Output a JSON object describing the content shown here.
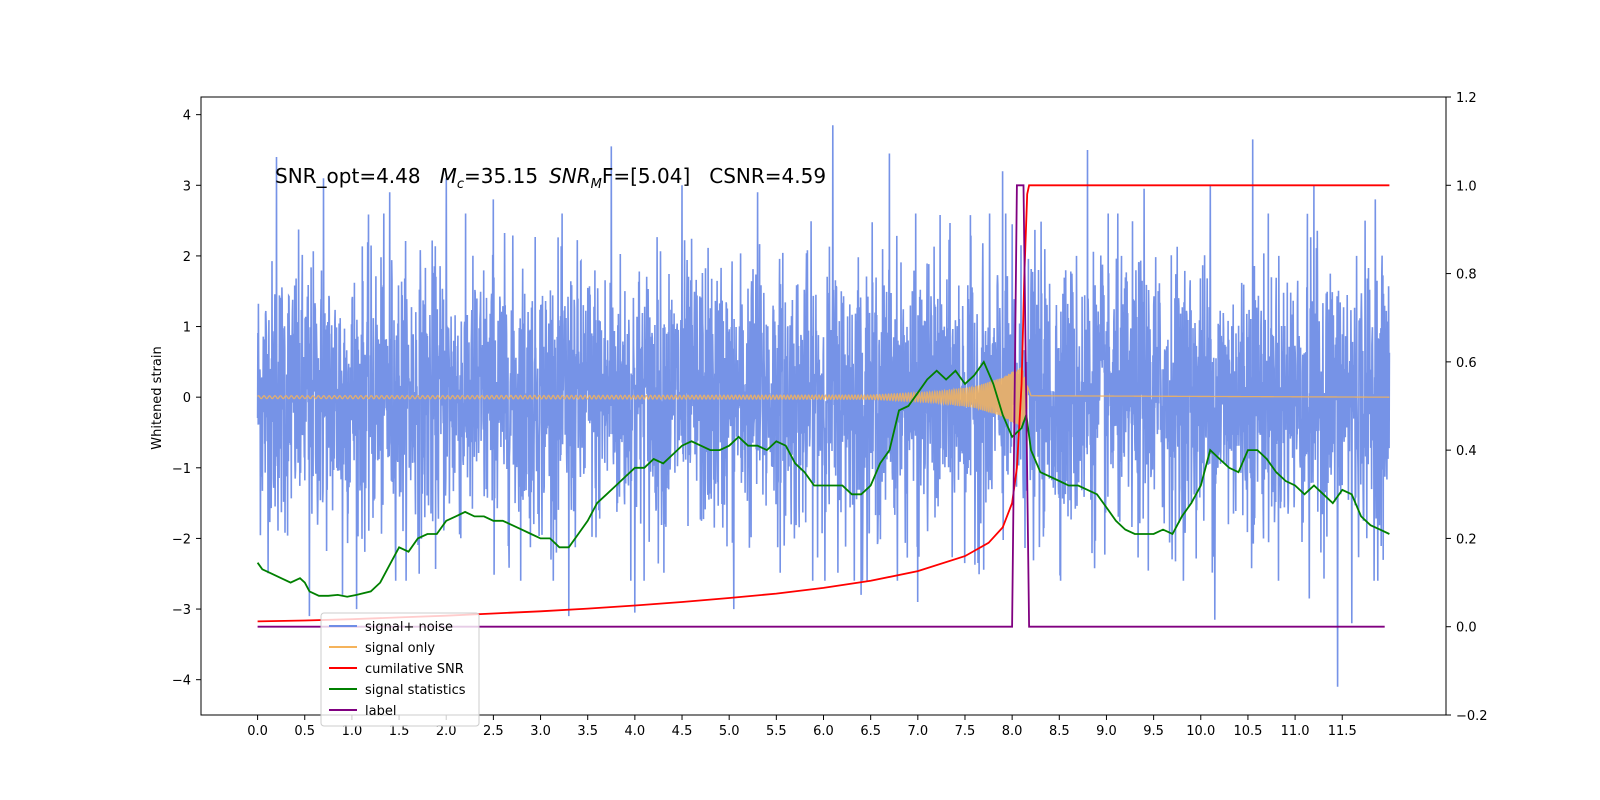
{
  "chart_data": {
    "type": "line",
    "title": "",
    "annotation": {
      "snr_opt": "SNR_opt=4.48",
      "mc_symbol": "M",
      "mc_subscript": "c",
      "mc_value": "=35.15",
      "snrmf_symbol": "SNR",
      "snrmf_subscript": "M",
      "snrmf_value": "F=[5.04]",
      "csnr": "CSNR=4.59"
    },
    "ylabel": "Whitened strain",
    "xlabel": "",
    "xlim": [
      -0.6,
      12.6
    ],
    "ylim": [
      -4.5,
      4.25
    ],
    "y2lim": [
      -0.2,
      1.2
    ],
    "grid": false,
    "legend_position": "lower-left",
    "x_ticks": [
      "0.0",
      "0.5",
      "1.0",
      "1.5",
      "2.0",
      "2.5",
      "3.0",
      "3.5",
      "4.0",
      "4.5",
      "5.0",
      "5.5",
      "6.0",
      "6.5",
      "7.0",
      "7.5",
      "8.0",
      "8.5",
      "9.0",
      "9.5",
      "10.0",
      "10.5",
      "11.0",
      "11.5"
    ],
    "x_tick_values": [
      0,
      0.5,
      1,
      1.5,
      2,
      2.5,
      3,
      3.5,
      4,
      4.5,
      5,
      5.5,
      6,
      6.5,
      7,
      7.5,
      8,
      8.5,
      9,
      9.5,
      10,
      10.5,
      11,
      11.5
    ],
    "y_ticks": [
      "−4",
      "−3",
      "−2",
      "−1",
      "0",
      "1",
      "2",
      "3",
      "4"
    ],
    "y_tick_values": [
      -4,
      -3,
      -2,
      -1,
      0,
      1,
      2,
      3,
      4
    ],
    "y2_ticks": [
      "−0.2",
      "0.0",
      "0.2",
      "0.4",
      "0.6",
      "0.8",
      "1.0",
      "1.2"
    ],
    "y2_tick_values": [
      -0.2,
      0,
      0.2,
      0.4,
      0.6,
      0.8,
      1.0,
      1.2
    ],
    "series": [
      {
        "name": "signal+ noise",
        "color": "#6f8de6",
        "axis": "left",
        "description": "whitened noisy strain fluctuating between about -2.5 and 2.5 with spikes up to 3.9 and down to -4.1",
        "x_range": [
          0,
          12
        ],
        "spikes_up": [
          [
            0.2,
            3.4
          ],
          [
            0.7,
            3.1
          ],
          [
            1.4,
            2.9
          ],
          [
            2.0,
            3.1
          ],
          [
            2.5,
            2.8
          ],
          [
            3.75,
            3.55
          ],
          [
            4.5,
            3.0
          ],
          [
            5.3,
            2.9
          ],
          [
            6.1,
            3.85
          ],
          [
            6.7,
            3.45
          ],
          [
            7.9,
            3.2
          ],
          [
            8.8,
            3.5
          ],
          [
            9.4,
            2.95
          ],
          [
            10.1,
            3.0
          ],
          [
            10.55,
            3.65
          ],
          [
            11.2,
            3.0
          ],
          [
            11.85,
            2.8
          ]
        ],
        "spikes_down": [
          [
            0.55,
            -3.1
          ],
          [
            0.9,
            -2.8
          ],
          [
            1.05,
            -3.0
          ],
          [
            3.3,
            -3.1
          ],
          [
            4.0,
            -3.05
          ],
          [
            5.05,
            -3.0
          ],
          [
            6.4,
            -2.8
          ],
          [
            7.0,
            -2.9
          ],
          [
            10.15,
            -3.15
          ],
          [
            11.15,
            -2.85
          ],
          [
            11.45,
            -4.1
          ],
          [
            11.6,
            -3.2
          ]
        ]
      },
      {
        "name": "signal only",
        "color": "#f5b35b",
        "axis": "left",
        "description": "chirp waveform, flat at 0 then growing oscillation near merger at about 8.15",
        "amplitude_points": [
          [
            0,
            0.02
          ],
          [
            6.5,
            0.03
          ],
          [
            7.2,
            0.08
          ],
          [
            7.6,
            0.15
          ],
          [
            7.9,
            0.28
          ],
          [
            8.1,
            0.45
          ],
          [
            8.15,
            0.2
          ],
          [
            8.2,
            0.02
          ],
          [
            12,
            0.0
          ]
        ]
      },
      {
        "name": "cumilative SNR",
        "color": "#ff0000",
        "axis": "right",
        "points": [
          [
            0,
            0.012
          ],
          [
            0.5,
            0.014
          ],
          [
            1,
            0.017
          ],
          [
            1.5,
            0.021
          ],
          [
            2,
            0.025
          ],
          [
            2.5,
            0.03
          ],
          [
            3,
            0.035
          ],
          [
            3.5,
            0.041
          ],
          [
            4,
            0.048
          ],
          [
            4.5,
            0.056
          ],
          [
            5,
            0.065
          ],
          [
            5.5,
            0.075
          ],
          [
            6,
            0.088
          ],
          [
            6.5,
            0.104
          ],
          [
            7,
            0.126
          ],
          [
            7.5,
            0.16
          ],
          [
            7.75,
            0.19
          ],
          [
            7.9,
            0.225
          ],
          [
            8.0,
            0.28
          ],
          [
            8.05,
            0.36
          ],
          [
            8.1,
            0.55
          ],
          [
            8.13,
            0.8
          ],
          [
            8.16,
            0.98
          ],
          [
            8.18,
            1.0
          ],
          [
            12,
            1.0
          ]
        ]
      },
      {
        "name": "signal statistics",
        "color": "#008000",
        "axis": "right",
        "points": [
          [
            0,
            0.145
          ],
          [
            0.05,
            0.13
          ],
          [
            0.15,
            0.12
          ],
          [
            0.25,
            0.11
          ],
          [
            0.35,
            0.1
          ],
          [
            0.45,
            0.11
          ],
          [
            0.5,
            0.1
          ],
          [
            0.55,
            0.08
          ],
          [
            0.65,
            0.07
          ],
          [
            0.75,
            0.07
          ],
          [
            0.85,
            0.072
          ],
          [
            0.95,
            0.068
          ],
          [
            1.05,
            0.072
          ],
          [
            1.2,
            0.08
          ],
          [
            1.3,
            0.1
          ],
          [
            1.4,
            0.14
          ],
          [
            1.5,
            0.18
          ],
          [
            1.6,
            0.17
          ],
          [
            1.7,
            0.2
          ],
          [
            1.8,
            0.21
          ],
          [
            1.9,
            0.21
          ],
          [
            2.0,
            0.24
          ],
          [
            2.1,
            0.25
          ],
          [
            2.2,
            0.26
          ],
          [
            2.3,
            0.25
          ],
          [
            2.4,
            0.25
          ],
          [
            2.5,
            0.24
          ],
          [
            2.6,
            0.24
          ],
          [
            2.7,
            0.23
          ],
          [
            2.8,
            0.22
          ],
          [
            2.9,
            0.21
          ],
          [
            3.0,
            0.2
          ],
          [
            3.1,
            0.2
          ],
          [
            3.2,
            0.18
          ],
          [
            3.3,
            0.18
          ],
          [
            3.4,
            0.21
          ],
          [
            3.5,
            0.24
          ],
          [
            3.6,
            0.28
          ],
          [
            3.7,
            0.3
          ],
          [
            3.8,
            0.32
          ],
          [
            3.9,
            0.34
          ],
          [
            4.0,
            0.36
          ],
          [
            4.1,
            0.36
          ],
          [
            4.2,
            0.38
          ],
          [
            4.3,
            0.37
          ],
          [
            4.4,
            0.39
          ],
          [
            4.5,
            0.41
          ],
          [
            4.6,
            0.42
          ],
          [
            4.7,
            0.41
          ],
          [
            4.8,
            0.4
          ],
          [
            4.9,
            0.4
          ],
          [
            5.0,
            0.41
          ],
          [
            5.1,
            0.43
          ],
          [
            5.2,
            0.41
          ],
          [
            5.3,
            0.41
          ],
          [
            5.4,
            0.4
          ],
          [
            5.5,
            0.42
          ],
          [
            5.6,
            0.41
          ],
          [
            5.7,
            0.37
          ],
          [
            5.8,
            0.35
          ],
          [
            5.9,
            0.32
          ],
          [
            6.0,
            0.32
          ],
          [
            6.1,
            0.32
          ],
          [
            6.2,
            0.32
          ],
          [
            6.3,
            0.3
          ],
          [
            6.4,
            0.3
          ],
          [
            6.5,
            0.32
          ],
          [
            6.6,
            0.37
          ],
          [
            6.7,
            0.4
          ],
          [
            6.8,
            0.49
          ],
          [
            6.9,
            0.5
          ],
          [
            7.0,
            0.53
          ],
          [
            7.1,
            0.56
          ],
          [
            7.2,
            0.58
          ],
          [
            7.3,
            0.56
          ],
          [
            7.4,
            0.58
          ],
          [
            7.5,
            0.55
          ],
          [
            7.6,
            0.57
          ],
          [
            7.7,
            0.6
          ],
          [
            7.8,
            0.55
          ],
          [
            7.9,
            0.48
          ],
          [
            8.0,
            0.43
          ],
          [
            8.1,
            0.45
          ],
          [
            8.15,
            0.48
          ],
          [
            8.2,
            0.4
          ],
          [
            8.3,
            0.35
          ],
          [
            8.4,
            0.34
          ],
          [
            8.5,
            0.33
          ],
          [
            8.6,
            0.32
          ],
          [
            8.7,
            0.32
          ],
          [
            8.8,
            0.31
          ],
          [
            8.9,
            0.3
          ],
          [
            9.0,
            0.27
          ],
          [
            9.1,
            0.24
          ],
          [
            9.2,
            0.22
          ],
          [
            9.3,
            0.21
          ],
          [
            9.4,
            0.21
          ],
          [
            9.5,
            0.21
          ],
          [
            9.6,
            0.22
          ],
          [
            9.7,
            0.21
          ],
          [
            9.8,
            0.25
          ],
          [
            9.9,
            0.28
          ],
          [
            10.0,
            0.32
          ],
          [
            10.1,
            0.4
          ],
          [
            10.2,
            0.38
          ],
          [
            10.3,
            0.36
          ],
          [
            10.4,
            0.35
          ],
          [
            10.5,
            0.4
          ],
          [
            10.6,
            0.4
          ],
          [
            10.7,
            0.38
          ],
          [
            10.8,
            0.35
          ],
          [
            10.9,
            0.33
          ],
          [
            11.0,
            0.32
          ],
          [
            11.1,
            0.3
          ],
          [
            11.2,
            0.32
          ],
          [
            11.3,
            0.3
          ],
          [
            11.4,
            0.28
          ],
          [
            11.5,
            0.31
          ],
          [
            11.6,
            0.3
          ],
          [
            11.7,
            0.25
          ],
          [
            11.8,
            0.23
          ],
          [
            11.9,
            0.22
          ],
          [
            12.0,
            0.21
          ]
        ]
      },
      {
        "name": "label",
        "color": "#800080",
        "axis": "right",
        "points": [
          [
            0,
            0.0
          ],
          [
            8.0,
            0.0
          ],
          [
            8.05,
            1.0
          ],
          [
            8.12,
            1.0
          ],
          [
            8.18,
            0.0
          ],
          [
            11.95,
            0.0
          ]
        ]
      }
    ],
    "legend": [
      {
        "label": "signal+ noise",
        "color": "#6f8de6"
      },
      {
        "label": "signal only",
        "color": "#f5b35b"
      },
      {
        "label": "cumilative SNR",
        "color": "#ff0000"
      },
      {
        "label": "signal statistics",
        "color": "#008000"
      },
      {
        "label": "label",
        "color": "#800080"
      }
    ]
  }
}
